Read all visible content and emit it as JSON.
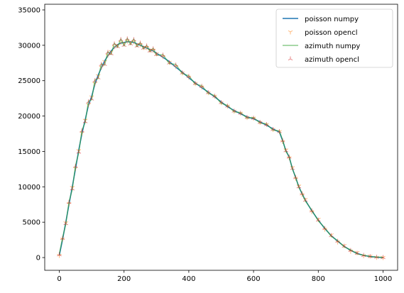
{
  "chart_data": {
    "type": "line",
    "title": "",
    "xlabel": "",
    "ylabel": "",
    "xlim": [
      -45,
      1045
    ],
    "ylim": [
      -1800,
      35800
    ],
    "xticks": [
      0,
      200,
      400,
      600,
      800,
      1000
    ],
    "yticks": [
      0,
      5000,
      10000,
      15000,
      20000,
      25000,
      30000,
      35000
    ],
    "grid": false,
    "legend_position": "top-right",
    "x": [
      0,
      10,
      20,
      30,
      40,
      50,
      60,
      70,
      80,
      90,
      100,
      110,
      120,
      130,
      140,
      150,
      160,
      170,
      180,
      190,
      200,
      210,
      220,
      230,
      240,
      250,
      260,
      270,
      280,
      290,
      300,
      320,
      340,
      360,
      380,
      400,
      420,
      440,
      460,
      480,
      500,
      520,
      540,
      560,
      580,
      600,
      620,
      640,
      660,
      680,
      690,
      700,
      710,
      720,
      730,
      740,
      750,
      760,
      780,
      800,
      820,
      840,
      860,
      880,
      900,
      920,
      940,
      960,
      980,
      1000
    ],
    "series": [
      {
        "name": "poisson numpy",
        "color": "#1f77b4",
        "marker": "line",
        "values": [
          300,
          2500,
          5000,
          7500,
          10000,
          12500,
          15200,
          17500,
          19500,
          21500,
          22800,
          24500,
          25800,
          26800,
          27800,
          28500,
          29200,
          29700,
          30100,
          30300,
          30400,
          30500,
          30500,
          30400,
          30200,
          30000,
          29800,
          29600,
          29400,
          29200,
          28900,
          28300,
          27700,
          26900,
          26200,
          25400,
          24700,
          24000,
          23400,
          22700,
          22000,
          21300,
          20800,
          20300,
          19900,
          19600,
          19200,
          18700,
          18200,
          17700,
          16500,
          15100,
          14200,
          12600,
          11300,
          10000,
          9000,
          8100,
          6600,
          5300,
          4100,
          3100,
          2300,
          1600,
          1000,
          600,
          300,
          150,
          50,
          0
        ]
      },
      {
        "name": "poisson opencl",
        "color": "#ff7f0e",
        "marker": "tri_down",
        "values": [
          300,
          2600,
          4900,
          7600,
          9900,
          12600,
          15100,
          17600,
          19400,
          21600,
          22700,
          24600,
          25700,
          26900,
          27700,
          28600,
          29100,
          29800,
          30000,
          30400,
          30300,
          30600,
          30400,
          30500,
          30100,
          30100,
          29700,
          29700,
          29300,
          29300,
          28800,
          28400,
          27600,
          27000,
          26100,
          25500,
          24600,
          24100,
          23300,
          22800,
          21900,
          21400,
          20700,
          20400,
          19800,
          19700,
          19100,
          18800,
          18100,
          17800,
          16400,
          15200,
          14100,
          12700,
          11200,
          10100,
          8900,
          8200,
          6500,
          5400,
          4000,
          3200,
          2200,
          1700,
          900,
          700,
          250,
          200,
          30,
          10
        ]
      },
      {
        "name": "azimuth numpy",
        "color": "#2ca02c",
        "marker": "line",
        "values": [
          500,
          2800,
          4700,
          7900,
          9600,
          13000,
          14800,
          18000,
          19100,
          22100,
          22300,
          25100,
          25300,
          27400,
          27200,
          29100,
          28700,
          30300,
          29700,
          30900,
          29900,
          31000,
          30100,
          30900,
          29800,
          30400,
          29500,
          30000,
          29100,
          29600,
          28600,
          28700,
          27400,
          27300,
          26000,
          25700,
          24500,
          24300,
          23200,
          22900,
          21800,
          21500,
          20600,
          20500,
          19700,
          19800,
          19000,
          18900,
          18000,
          17900,
          16600,
          15000,
          14300,
          12500,
          11400,
          9900,
          9100,
          8000,
          6700,
          5200,
          4200,
          3000,
          2400,
          1500,
          1100,
          500,
          350,
          100,
          80,
          0
        ]
      },
      {
        "name": "azimuth opencl",
        "color": "#d62728",
        "marker": "tri_up",
        "values": [
          400,
          2700,
          4800,
          7800,
          9700,
          12900,
          14900,
          17900,
          19200,
          22000,
          22400,
          25000,
          25400,
          27300,
          27300,
          29000,
          28800,
          30200,
          29800,
          30800,
          30000,
          30900,
          30200,
          30800,
          29900,
          30300,
          29600,
          29900,
          29200,
          29500,
          28700,
          28600,
          27500,
          27200,
          26100,
          25600,
          24600,
          24200,
          23300,
          22800,
          21900,
          21400,
          20700,
          20400,
          19800,
          19700,
          19100,
          18800,
          18100,
          17800,
          16500,
          15100,
          14200,
          12600,
          11300,
          10000,
          9000,
          8100,
          6600,
          5300,
          4100,
          3100,
          2300,
          1600,
          1000,
          600,
          300,
          150,
          50,
          0
        ]
      }
    ]
  }
}
